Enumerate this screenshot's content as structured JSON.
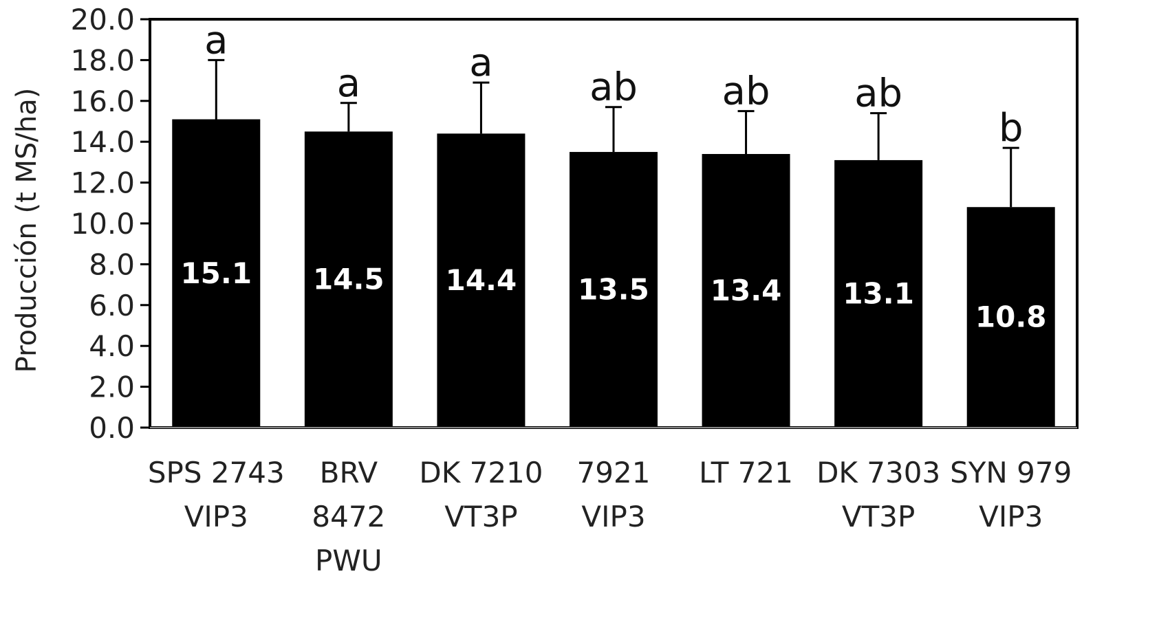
{
  "chart_data": {
    "type": "bar",
    "title": "",
    "xlabel": "",
    "ylabel": "Producción (t MS/ha)",
    "ylim": [
      0,
      20
    ],
    "yticks": [
      "0.0",
      "2.0",
      "4.0",
      "6.0",
      "8.0",
      "10.0",
      "12.0",
      "14.0",
      "16.0",
      "18.0",
      "20.0"
    ],
    "grid": false,
    "categories": [
      [
        "SPS 2743",
        "VIP3"
      ],
      [
        "BRV",
        "8472",
        "PWU"
      ],
      [
        "DK 7210",
        "VT3P"
      ],
      [
        "7921",
        "VIP3"
      ],
      [
        "LT 721"
      ],
      [
        "DK 7303",
        "VT3P"
      ],
      [
        "SYN 979",
        "VIP3"
      ]
    ],
    "values": [
      15.1,
      14.5,
      14.4,
      13.5,
      13.4,
      13.1,
      10.8
    ],
    "value_labels": [
      "15.1",
      "14.5",
      "14.4",
      "13.5",
      "13.4",
      "13.1",
      "10.8"
    ],
    "error_upper": [
      18.0,
      15.9,
      16.9,
      15.7,
      15.5,
      15.4,
      13.7
    ],
    "significance_letters": [
      "a",
      "a",
      "a",
      "ab",
      "ab",
      "ab",
      "b"
    ],
    "bar_color": "#000000"
  }
}
